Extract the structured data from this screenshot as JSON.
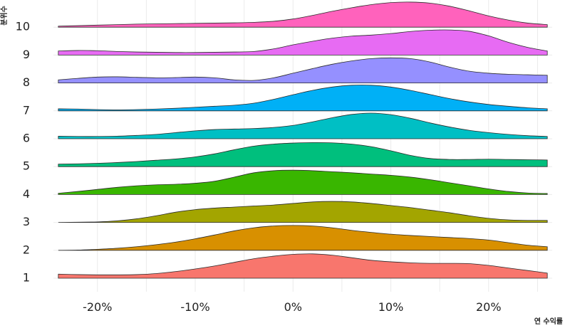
{
  "chart_data": {
    "type": "area",
    "subtype": "ridgeline-density",
    "xlabel": "연 수익률",
    "ylabel": "분위수",
    "xlim": [
      -0.245,
      0.265
    ],
    "x_ticks": [
      -0.2,
      -0.1,
      0.0,
      0.1,
      0.2
    ],
    "x_tick_labels": [
      "-20%",
      "-10%",
      "0%",
      "10%",
      "20%"
    ],
    "grid": true,
    "legend": "none",
    "x": [
      -0.24,
      -0.22,
      -0.2,
      -0.18,
      -0.16,
      -0.14,
      -0.12,
      -0.1,
      -0.08,
      -0.06,
      -0.04,
      -0.02,
      0.0,
      0.02,
      0.04,
      0.06,
      0.08,
      0.1,
      0.12,
      0.14,
      0.16,
      0.18,
      0.2,
      0.22,
      0.24,
      0.26
    ],
    "series": [
      {
        "name": "1",
        "color": "#F8766D",
        "density": [
          0.16,
          0.14,
          0.13,
          0.13,
          0.14,
          0.18,
          0.26,
          0.36,
          0.48,
          0.62,
          0.76,
          0.86,
          0.93,
          0.95,
          0.9,
          0.8,
          0.7,
          0.64,
          0.6,
          0.58,
          0.58,
          0.57,
          0.5,
          0.4,
          0.3,
          0.2
        ]
      },
      {
        "name": "2",
        "color": "#D89000",
        "density": [
          0.0,
          0.01,
          0.04,
          0.08,
          0.14,
          0.22,
          0.32,
          0.45,
          0.6,
          0.76,
          0.88,
          0.95,
          0.97,
          0.95,
          0.88,
          0.78,
          0.7,
          0.63,
          0.58,
          0.54,
          0.5,
          0.46,
          0.4,
          0.3,
          0.2,
          0.14
        ]
      },
      {
        "name": "3",
        "color": "#A3A500",
        "density": [
          0.0,
          0.01,
          0.02,
          0.06,
          0.14,
          0.26,
          0.4,
          0.5,
          0.56,
          0.6,
          0.64,
          0.68,
          0.74,
          0.8,
          0.82,
          0.8,
          0.74,
          0.66,
          0.58,
          0.48,
          0.38,
          0.26,
          0.16,
          0.1,
          0.08,
          0.08
        ]
      },
      {
        "name": "4",
        "color": "#39B600",
        "density": [
          0.05,
          0.12,
          0.2,
          0.28,
          0.34,
          0.38,
          0.4,
          0.44,
          0.52,
          0.68,
          0.85,
          0.93,
          0.95,
          0.93,
          0.89,
          0.85,
          0.8,
          0.75,
          0.68,
          0.58,
          0.46,
          0.34,
          0.22,
          0.12,
          0.06,
          0.04
        ]
      },
      {
        "name": "5",
        "color": "#00BF7D",
        "density": [
          0.1,
          0.11,
          0.13,
          0.16,
          0.2,
          0.25,
          0.3,
          0.38,
          0.5,
          0.66,
          0.8,
          0.88,
          0.92,
          0.94,
          0.93,
          0.88,
          0.78,
          0.62,
          0.44,
          0.32,
          0.28,
          0.28,
          0.29,
          0.28,
          0.27,
          0.26
        ]
      },
      {
        "name": "6",
        "color": "#00BFC4",
        "density": [
          0.1,
          0.09,
          0.09,
          0.1,
          0.13,
          0.17,
          0.24,
          0.31,
          0.36,
          0.38,
          0.4,
          0.44,
          0.52,
          0.66,
          0.82,
          0.95,
          1.0,
          0.94,
          0.8,
          0.62,
          0.46,
          0.33,
          0.24,
          0.17,
          0.12,
          0.09
        ]
      },
      {
        "name": "7",
        "color": "#00B0F6",
        "density": [
          0.08,
          0.07,
          0.05,
          0.04,
          0.05,
          0.07,
          0.1,
          0.14,
          0.18,
          0.22,
          0.3,
          0.45,
          0.63,
          0.8,
          0.93,
          1.0,
          1.0,
          0.93,
          0.8,
          0.64,
          0.48,
          0.35,
          0.25,
          0.18,
          0.12,
          0.08
        ]
      },
      {
        "name": "8",
        "color": "#9590FF",
        "density": [
          0.12,
          0.18,
          0.23,
          0.24,
          0.22,
          0.2,
          0.21,
          0.23,
          0.2,
          0.12,
          0.1,
          0.2,
          0.38,
          0.56,
          0.73,
          0.86,
          0.95,
          0.98,
          0.95,
          0.82,
          0.62,
          0.46,
          0.38,
          0.34,
          0.32,
          0.3
        ]
      },
      {
        "name": "9",
        "color": "#E76BF3",
        "density": [
          0.16,
          0.18,
          0.17,
          0.14,
          0.12,
          0.11,
          0.1,
          0.1,
          0.11,
          0.12,
          0.14,
          0.24,
          0.4,
          0.54,
          0.66,
          0.74,
          0.78,
          0.84,
          0.92,
          0.97,
          0.98,
          0.93,
          0.75,
          0.5,
          0.3,
          0.16
        ]
      },
      {
        "name": "10",
        "color": "#FF62BC",
        "density": [
          0.04,
          0.06,
          0.08,
          0.1,
          0.12,
          0.13,
          0.14,
          0.15,
          0.16,
          0.17,
          0.19,
          0.23,
          0.32,
          0.46,
          0.62,
          0.76,
          0.88,
          0.96,
          0.98,
          0.94,
          0.82,
          0.64,
          0.44,
          0.28,
          0.16,
          0.1
        ]
      }
    ]
  }
}
